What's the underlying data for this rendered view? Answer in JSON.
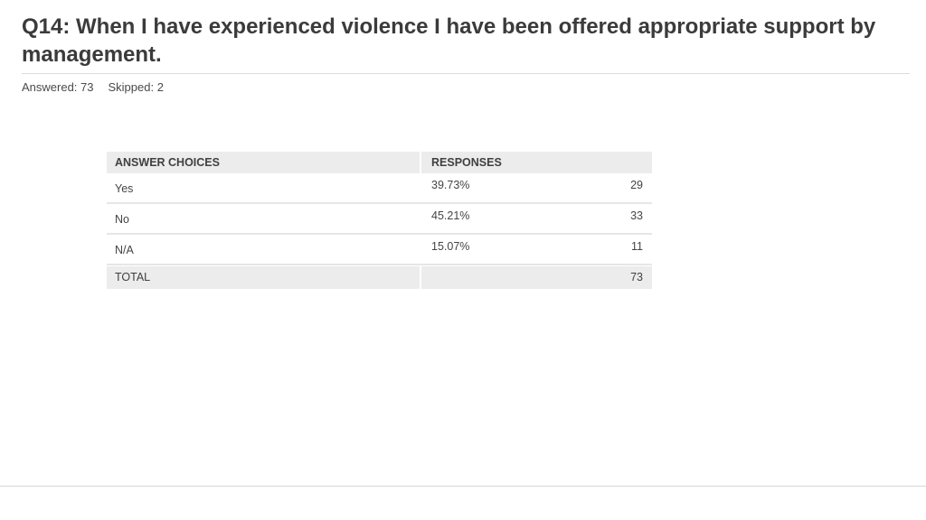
{
  "question": {
    "title": "Q14: When I have experienced violence I have been offered appropriate support by management.",
    "answered": "Answered: 73",
    "skipped": "Skipped: 2"
  },
  "table": {
    "headers": {
      "choices": "ANSWER CHOICES",
      "responses": "RESPONSES"
    },
    "rows": [
      {
        "choice": "Yes",
        "percent": "39.73%",
        "count": "29"
      },
      {
        "choice": "No",
        "percent": "45.21%",
        "count": "33"
      },
      {
        "choice": "N/A",
        "percent": "15.07%",
        "count": "11"
      }
    ],
    "total": {
      "label": "TOTAL",
      "count": "73"
    }
  }
}
